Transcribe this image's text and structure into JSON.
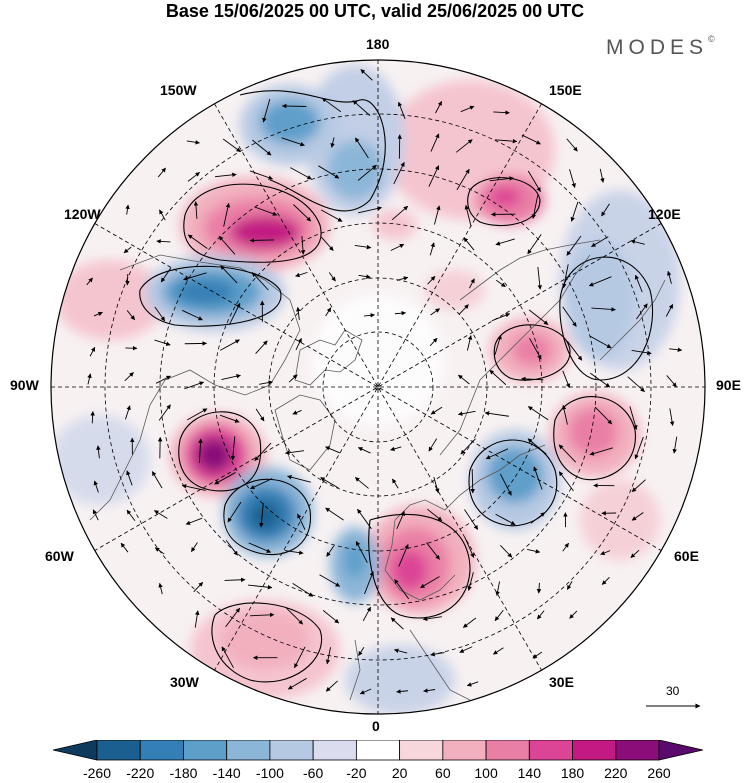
{
  "title": "Base 15/06/2025 00 UTC, valid 25/06/2025 00 UTC",
  "brand": "MODES",
  "brand_mark": "©",
  "longitude_labels": {
    "n180": "180",
    "w150": "150W",
    "e150": "150E",
    "w120": "120W",
    "e120": "120E",
    "w90": "90W",
    "e90": "90E",
    "w60": "60W",
    "e60": "60E",
    "w30": "30W",
    "e30": "30E",
    "s0": "0"
  },
  "vector_scale": {
    "value": "30"
  },
  "colorbar": {
    "ticks": [
      "-260",
      "-220",
      "-180",
      "-140",
      "-100",
      "-60",
      "-20",
      "20",
      "60",
      "100",
      "140",
      "180",
      "220",
      "260"
    ],
    "colors": [
      "#0f3a5c",
      "#1a5f8f",
      "#3480b6",
      "#5e9fca",
      "#8cb6d8",
      "#b6c9e3",
      "#dcdcef",
      "#ffffff",
      "#f8d7dc",
      "#f2b0be",
      "#ea7fa6",
      "#dc4595",
      "#c21a82",
      "#8a0d79",
      "#5a0a6c"
    ]
  },
  "anomaly_centres": [
    {
      "name": "neg-150w",
      "value": -130,
      "color": "#5e9fca"
    },
    {
      "name": "pos-130w",
      "value": 190,
      "color": "#c21a82"
    },
    {
      "name": "neg-110w",
      "value": -170,
      "color": "#3480b6"
    },
    {
      "name": "pos-70w",
      "value": 240,
      "color": "#8a0d79"
    },
    {
      "name": "neg-50w",
      "value": -200,
      "color": "#1a5f8f"
    },
    {
      "name": "pos-10e",
      "value": 170,
      "color": "#dc4595"
    },
    {
      "name": "neg-10w",
      "value": -110,
      "color": "#5e9fca"
    },
    {
      "name": "neg-40e",
      "value": -120,
      "color": "#5e9fca"
    },
    {
      "name": "pos-80e",
      "value": 110,
      "color": "#ea7fa6"
    },
    {
      "name": "pos-110e",
      "value": 130,
      "color": "#ea7fa6"
    },
    {
      "name": "pos-150e",
      "value": 150,
      "color": "#dc4595"
    },
    {
      "name": "neg-170e",
      "value": -60,
      "color": "#8cb6d8"
    },
    {
      "name": "pos-30w",
      "value": 60,
      "color": "#f2b0be"
    },
    {
      "name": "neg-120e",
      "value": -60,
      "color": "#b6c9e3"
    }
  ]
}
